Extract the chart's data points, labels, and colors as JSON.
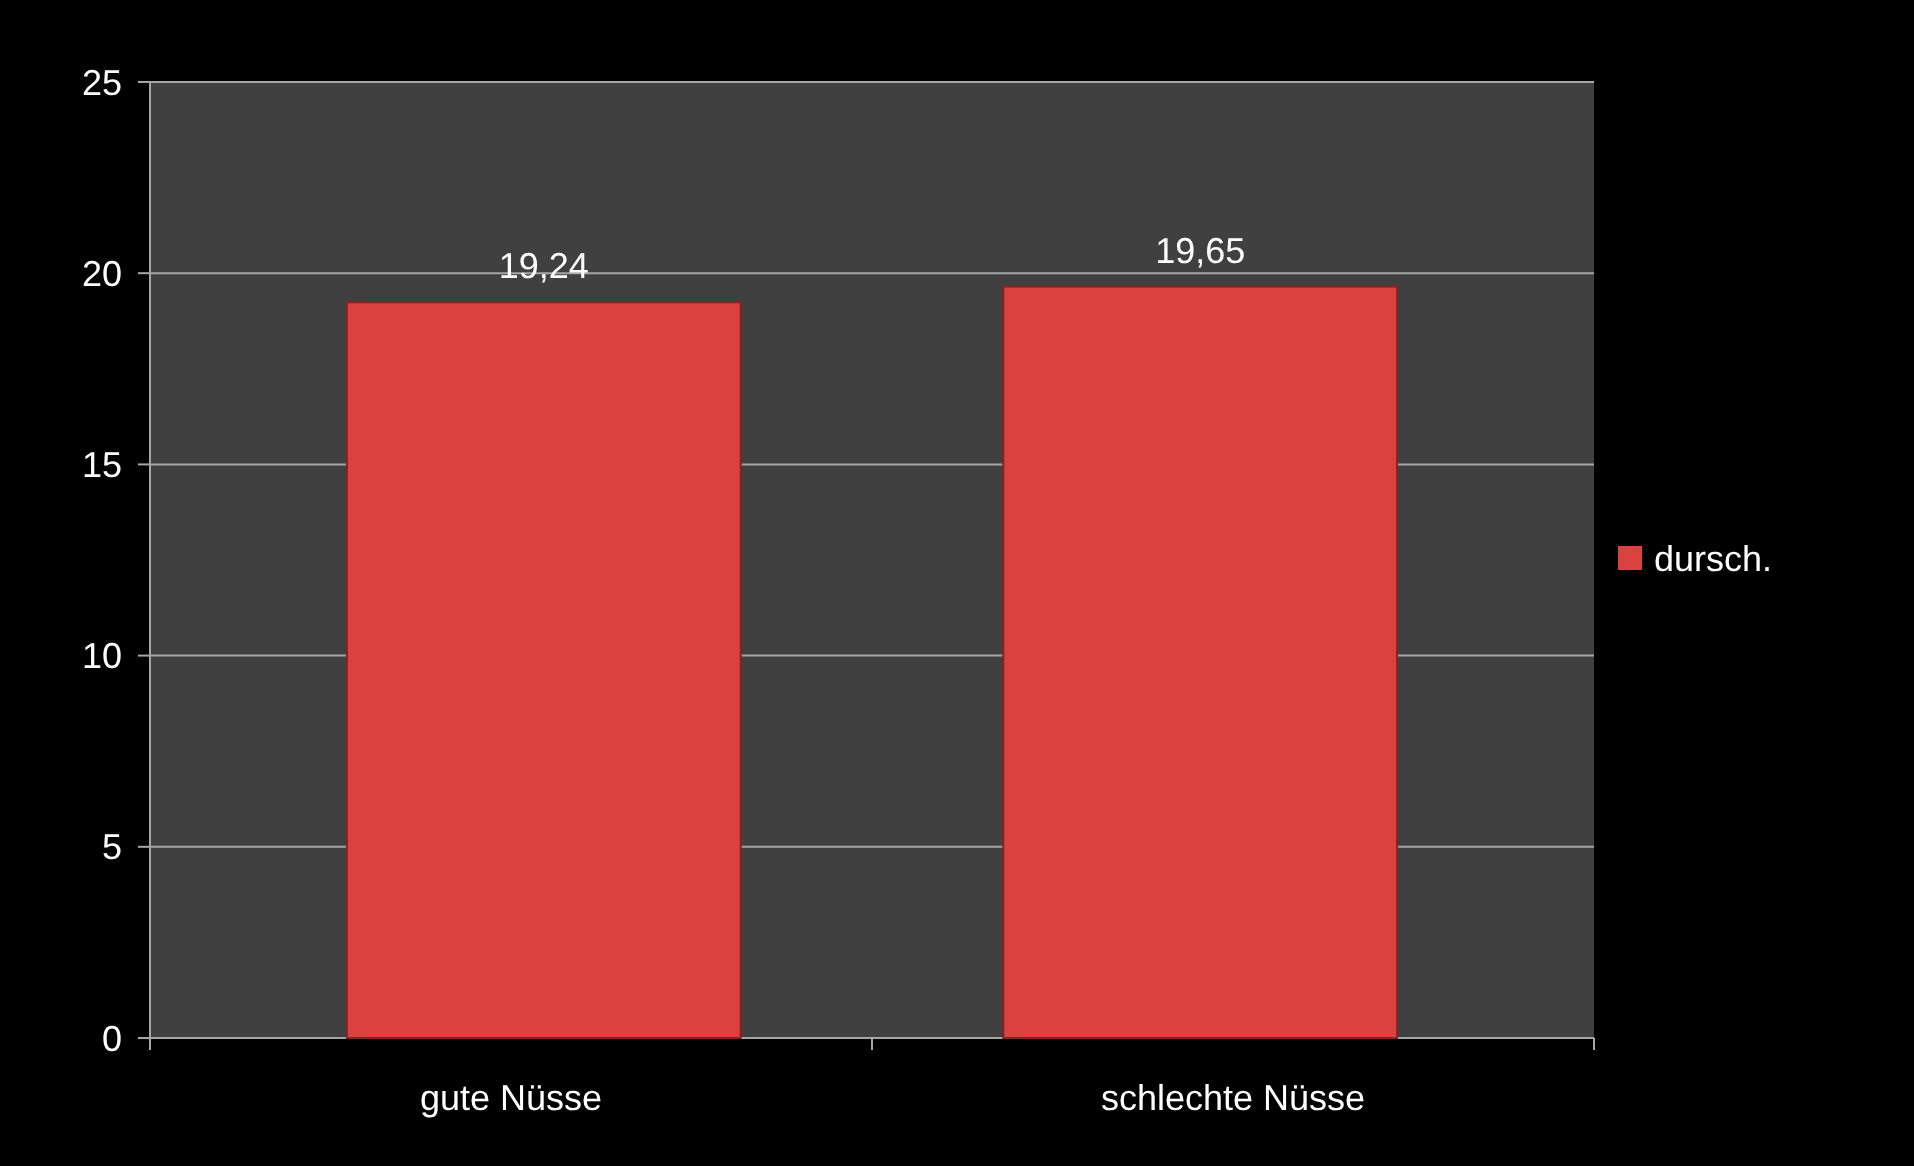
{
  "chart_data": {
    "type": "bar",
    "categories": [
      "gute Nüsse",
      "schlechte Nüsse"
    ],
    "series": [
      {
        "name": "dursch.",
        "color": "#d9423f",
        "values": [
          19.24,
          19.65
        ],
        "value_labels": [
          "19,24",
          "19,65"
        ]
      }
    ],
    "ylim": [
      0,
      25
    ],
    "yticks": [
      0,
      5,
      10,
      15,
      20,
      25
    ],
    "grid": "y",
    "legend": "right"
  }
}
